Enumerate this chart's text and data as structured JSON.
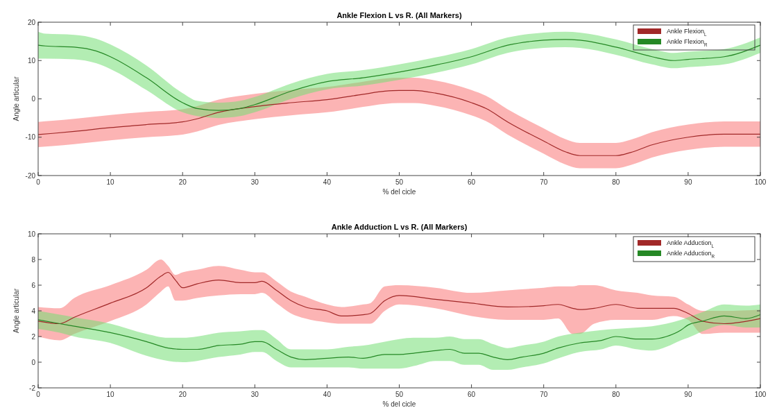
{
  "chart_data": [
    {
      "type": "line",
      "title": "Ankle Flexion L vs R. (All Markers)",
      "xlabel": "% del cicle",
      "ylabel": "Angle articular",
      "xlim": [
        0,
        100
      ],
      "xticks": [
        0,
        10,
        20,
        30,
        40,
        50,
        60,
        70,
        80,
        90,
        100
      ],
      "ylim": [
        -20,
        20
      ],
      "yticks": [
        -20,
        -10,
        0,
        10,
        20
      ],
      "legend": "top right",
      "grid": false,
      "marker": "none",
      "line_style": "solid",
      "series": [
        {
          "name": "Ankle Flexion$_{L}$",
          "color": "#a12828",
          "x": [
            0,
            2,
            5,
            10,
            15,
            20,
            22,
            25,
            30,
            35,
            40,
            45,
            48,
            50,
            52,
            55,
            60,
            62,
            65,
            70,
            73,
            75,
            80,
            82,
            85,
            90,
            95,
            100
          ],
          "values": [
            -9.3,
            -9,
            -8.5,
            -7.5,
            -6.7,
            -6,
            -5.2,
            -3.5,
            -2,
            -1,
            -0.2,
            1.2,
            2,
            2.2,
            2.2,
            1.5,
            -1,
            -2.5,
            -6,
            -11,
            -13.8,
            -14.8,
            -14.8,
            -14,
            -12,
            -10,
            -9.2,
            -9.2
          ],
          "lower": [
            -12.6,
            -12.3,
            -11.8,
            -10.8,
            -10,
            -9.3,
            -8.5,
            -6.8,
            -5.3,
            -4.3,
            -3.5,
            -2.1,
            -1.3,
            -1.1,
            -1.1,
            -1.8,
            -4.3,
            -5.8,
            -9.3,
            -14.3,
            -17.1,
            -18.1,
            -18.1,
            -17.3,
            -15.3,
            -13.3,
            -12.5,
            -12.5
          ],
          "upper": [
            -6,
            -5.7,
            -5.2,
            -4.2,
            -3.4,
            -2.7,
            -1.9,
            -0.2,
            1.3,
            2.3,
            3.1,
            4.5,
            5.3,
            5.5,
            5.5,
            4.8,
            2.3,
            0.8,
            -2.7,
            -7.7,
            -10.5,
            -11.5,
            -11.5,
            -10.7,
            -8.7,
            -6.7,
            -5.9,
            -5.9
          ]
        },
        {
          "name": "Ankle Flexion$_{R}$",
          "color": "#258825",
          "x": [
            0,
            1,
            5,
            8,
            10,
            15,
            20,
            22,
            25,
            28,
            30,
            35,
            40,
            45,
            50,
            55,
            60,
            65,
            70,
            73,
            75,
            80,
            85,
            88,
            90,
            95,
            100
          ],
          "values": [
            14,
            13.8,
            13.5,
            12.5,
            11,
            5.5,
            -1,
            -2.5,
            -3,
            -2.5,
            -1.5,
            2,
            4.5,
            5.5,
            7,
            8.8,
            11,
            14,
            15.3,
            15.5,
            15.3,
            13.5,
            11,
            10,
            10.3,
            11,
            14
          ],
          "lower": [
            10.5,
            10.5,
            10.3,
            9.3,
            7.8,
            2.3,
            -3.5,
            -4.5,
            -5,
            -4.5,
            -3.5,
            0,
            2.5,
            3.5,
            5,
            6.8,
            9,
            12,
            13.3,
            13.5,
            13.3,
            11.5,
            9,
            8,
            8.3,
            9,
            12
          ],
          "upper": [
            17.5,
            17,
            16.7,
            15.7,
            14.2,
            8.7,
            1.5,
            -0.5,
            -1,
            -0.5,
            0.5,
            4,
            6.5,
            7.5,
            9,
            10.8,
            13,
            16,
            17.3,
            17.5,
            17.3,
            15.5,
            13,
            12,
            12.3,
            13,
            16
          ]
        }
      ]
    },
    {
      "type": "line",
      "title": "Ankle Adduction L vs R. (All Markers)",
      "xlabel": "% del cicle",
      "ylabel": "Angle articular",
      "xlim": [
        0,
        100
      ],
      "xticks": [
        0,
        10,
        20,
        30,
        40,
        50,
        60,
        70,
        80,
        90,
        100
      ],
      "ylim": [
        -2,
        10
      ],
      "yticks": [
        -2,
        0,
        2,
        4,
        6,
        8,
        10
      ],
      "legend": "top right",
      "grid": false,
      "marker": "none",
      "line_style": "solid",
      "series": [
        {
          "name": "Ankle Adduction$_{L}$",
          "color": "#a12828",
          "x": [
            0,
            3,
            5,
            10,
            15,
            17,
            18,
            19,
            20,
            22,
            25,
            28,
            30,
            31,
            33,
            35,
            37,
            40,
            42,
            45,
            46,
            48,
            50,
            55,
            60,
            65,
            70,
            72,
            74,
            75,
            77,
            80,
            83,
            85,
            88,
            90,
            92,
            95,
            100
          ],
          "values": [
            3.2,
            3.0,
            3.5,
            4.6,
            5.8,
            6.7,
            7.0,
            6.4,
            5.8,
            6.1,
            6.4,
            6.2,
            6.2,
            6.3,
            5.6,
            4.8,
            4.3,
            4.0,
            3.6,
            3.7,
            3.8,
            4.8,
            5.2,
            4.9,
            4.6,
            4.3,
            4.4,
            4.5,
            4.2,
            4.1,
            4.2,
            4.5,
            4.2,
            4.2,
            4.2,
            3.8,
            3.2,
            3.0,
            3.4
          ],
          "lower": [
            2.0,
            1.7,
            2.2,
            3.2,
            4.5,
            5.5,
            5.9,
            4.8,
            4.8,
            5.0,
            5.2,
            5.3,
            5.3,
            5.4,
            4.6,
            3.8,
            3.4,
            3.1,
            3.0,
            3.0,
            3.0,
            4.0,
            4.5,
            4.2,
            3.6,
            3.3,
            3.3,
            3.4,
            2.2,
            2.2,
            3.0,
            3.3,
            3.3,
            3.3,
            3.6,
            3.3,
            2.2,
            2.3,
            2.3
          ],
          "upper": [
            4.3,
            4.2,
            5.0,
            6.0,
            7.2,
            8.0,
            7.5,
            6.8,
            7.0,
            7.2,
            7.5,
            7.2,
            7.0,
            7.0,
            6.3,
            5.5,
            5.1,
            4.5,
            4.3,
            4.5,
            4.6,
            5.9,
            6.0,
            5.8,
            5.4,
            5.6,
            5.8,
            5.9,
            5.9,
            6.0,
            6.0,
            5.6,
            5.4,
            5.2,
            5.1,
            4.5,
            4.0,
            4.0,
            4.1
          ]
        },
        {
          "name": "Ankle Adduction$_{R}$",
          "color": "#258825",
          "x": [
            0,
            3,
            5,
            10,
            15,
            18,
            20,
            22,
            25,
            28,
            30,
            31,
            33,
            35,
            37,
            40,
            43,
            45,
            48,
            50,
            52,
            55,
            57,
            59,
            61,
            63,
            65,
            67,
            70,
            72,
            75,
            78,
            80,
            83,
            85,
            87,
            89,
            90,
            92,
            95,
            98,
            100
          ],
          "values": [
            3.3,
            3.0,
            2.8,
            2.3,
            1.6,
            1.1,
            1.0,
            1.0,
            1.3,
            1.4,
            1.6,
            1.6,
            1.0,
            0.4,
            0.2,
            0.3,
            0.4,
            0.3,
            0.6,
            0.6,
            0.7,
            0.9,
            1.0,
            0.7,
            0.7,
            0.4,
            0.2,
            0.4,
            0.7,
            1.1,
            1.5,
            1.7,
            2.0,
            1.8,
            1.8,
            2.0,
            2.5,
            2.9,
            3.2,
            3.6,
            3.4,
            3.7
          ],
          "lower": [
            2.6,
            2.3,
            2.0,
            1.5,
            0.5,
            0.1,
            0.0,
            0.1,
            0.4,
            0.6,
            0.8,
            0.8,
            0.1,
            -0.4,
            -0.4,
            -0.4,
            -0.4,
            -0.5,
            -0.5,
            -0.5,
            -0.3,
            0.1,
            0.1,
            -0.2,
            -0.2,
            -0.6,
            -0.6,
            -0.4,
            -0.1,
            0.3,
            0.8,
            1.0,
            1.3,
            1.0,
            0.9,
            1.2,
            1.7,
            1.9,
            2.4,
            2.9,
            2.7,
            2.7
          ],
          "upper": [
            4.0,
            3.7,
            3.5,
            3.0,
            2.2,
            1.9,
            1.9,
            2.0,
            2.3,
            2.4,
            2.5,
            2.5,
            1.8,
            1.0,
            1.0,
            1.0,
            1.2,
            1.3,
            1.6,
            1.8,
            1.9,
            1.9,
            2.0,
            1.8,
            1.8,
            1.4,
            1.1,
            1.3,
            1.6,
            2.0,
            2.3,
            2.5,
            2.6,
            2.7,
            2.8,
            3.0,
            3.3,
            3.5,
            3.9,
            4.5,
            4.4,
            4.5
          ]
        }
      ]
    }
  ]
}
